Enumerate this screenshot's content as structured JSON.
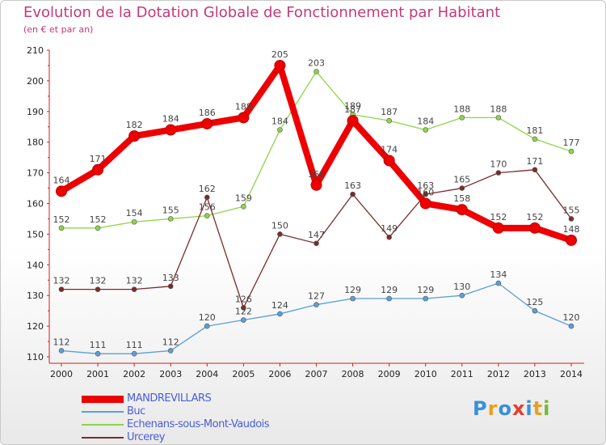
{
  "header": {
    "title": "Evolution de la Dotation Globale de Fonctionnement par Habitant",
    "subtitle": "(en € et par an)"
  },
  "brand": {
    "text": "Proxiti",
    "letters": [
      "P",
      "r",
      "o",
      "x",
      "i",
      "t",
      "i"
    ],
    "colors": [
      "#3a8fd8",
      "#e8a020",
      "#3a8fd8",
      "#e83c30",
      "#3a8fd8",
      "#e8a020",
      "#78b83a"
    ]
  },
  "chart_data": {
    "type": "line",
    "x": [
      "2000",
      "2001",
      "2002",
      "2003",
      "2004",
      "2005",
      "2006",
      "2007",
      "2008",
      "2009",
      "2010",
      "2011",
      "2012",
      "2013",
      "2014"
    ],
    "ylim": [
      110,
      210
    ],
    "yticks": [
      110,
      120,
      130,
      140,
      150,
      160,
      170,
      180,
      190,
      200,
      210
    ],
    "grid": false,
    "legend_position": "bottom-left",
    "series": [
      {
        "name": "MANDREVILLARS",
        "color": "#ee0000",
        "emphasis": true,
        "values": [
          164,
          171,
          182,
          184,
          186,
          188,
          205,
          166,
          187,
          174,
          160,
          158,
          152,
          152,
          148
        ]
      },
      {
        "name": "Buc",
        "color": "#5b9fd8",
        "emphasis": false,
        "values": [
          112,
          111,
          111,
          112,
          120,
          122,
          124,
          127,
          129,
          129,
          129,
          130,
          134,
          125,
          120
        ]
      },
      {
        "name": "Echenans-sous-Mont-Vaudois",
        "color": "#8fd44a",
        "emphasis": false,
        "values": [
          152,
          152,
          154,
          155,
          156,
          159,
          184,
          203,
          189,
          187,
          184,
          188,
          188,
          181,
          177
        ]
      },
      {
        "name": "Urcerey",
        "color": "#7a2c2c",
        "emphasis": false,
        "values": [
          132,
          132,
          132,
          133,
          162,
          126,
          150,
          147,
          163,
          149,
          163,
          165,
          170,
          171,
          155
        ]
      }
    ]
  }
}
